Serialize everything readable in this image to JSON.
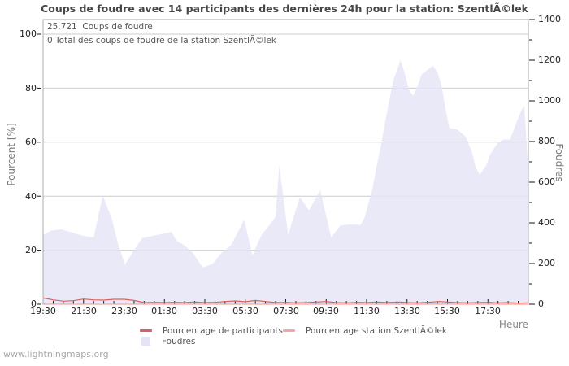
{
  "title": "Coups de foudre avec 14 participants des dernières 24h pour la station: SzentlÃ©lek",
  "annotations": {
    "total_strikes": "25.721  Coups de foudre",
    "station_total": "0 Total des coups de foudre de la station SzentlÃ©lek"
  },
  "footer": "www.lightningmaps.org",
  "colors": {
    "grid": "#cdcdcd",
    "frame": "#ababab",
    "tick": "#1a1a1a",
    "area": "#e4e4f6",
    "participants_line": "#d9605e",
    "station_line": "#f2a7a5",
    "title_text": "#474747",
    "label_text": "#555555"
  },
  "legend": {
    "participants_label": "Pourcentage de participants",
    "station_label": "Pourcentage station SzentlÃ©lek",
    "foudres_label": "Foudres"
  },
  "chart_data": {
    "type": "area",
    "title": "Coups de foudre avec 14 participants des dernières 24h pour la station: SzentlÃ©lek",
    "grid": "horizontal",
    "legend_position": "bottom",
    "x_axis": {
      "label": "Heure",
      "start_time": "19:30",
      "range_hours": [
        0,
        24
      ],
      "minor_tick_step_hours": 0.5,
      "major_tick_step_hours": 2,
      "ticklabels": [
        "19:30",
        "21:30",
        "23:30",
        "01:30",
        "03:30",
        "05:30",
        "07:30",
        "09:30",
        "11:30",
        "13:30",
        "15:30",
        "17:30"
      ]
    },
    "y_left": {
      "label": "Pourcent  [%]",
      "range": [
        0,
        100
      ],
      "ticks": [
        0,
        20,
        40,
        60,
        80,
        100
      ],
      "ticklabels": [
        "0",
        "20",
        "40",
        "60",
        "80",
        "100"
      ]
    },
    "y_right": {
      "label": "Foudres",
      "range": [
        0,
        1400
      ],
      "ticks": [
        0,
        200,
        400,
        600,
        800,
        1000,
        1200,
        1400
      ],
      "minor_tick_step": 100,
      "ticklabels": [
        "0",
        "200",
        "400",
        "600",
        "800",
        "1000",
        "1200",
        "1400"
      ]
    },
    "series": [
      {
        "name": "Foudres",
        "type": "area",
        "axis": "right",
        "color": "#e4e4f6",
        "fill_opacity": 0.8,
        "points": [
          [
            0.0,
            340
          ],
          [
            0.4,
            362
          ],
          [
            0.9,
            368
          ],
          [
            1.5,
            350
          ],
          [
            2.0,
            336
          ],
          [
            2.5,
            328
          ],
          [
            2.95,
            535
          ],
          [
            3.4,
            420
          ],
          [
            3.7,
            300
          ],
          [
            4.05,
            195
          ],
          [
            4.5,
            265
          ],
          [
            4.9,
            325
          ],
          [
            5.5,
            338
          ],
          [
            6.1,
            350
          ],
          [
            6.35,
            355
          ],
          [
            6.6,
            312
          ],
          [
            7.0,
            288
          ],
          [
            7.4,
            254
          ],
          [
            7.9,
            180
          ],
          [
            8.4,
            200
          ],
          [
            8.8,
            250
          ],
          [
            9.3,
            290
          ],
          [
            9.95,
            415
          ],
          [
            10.35,
            240
          ],
          [
            10.8,
            340
          ],
          [
            11.2,
            390
          ],
          [
            11.5,
            430
          ],
          [
            11.68,
            683
          ],
          [
            12.12,
            341
          ],
          [
            12.7,
            527
          ],
          [
            13.15,
            461
          ],
          [
            13.7,
            561
          ],
          [
            14.25,
            327
          ],
          [
            14.7,
            387
          ],
          [
            15.2,
            392
          ],
          [
            15.7,
            390
          ],
          [
            15.9,
            426
          ],
          [
            16.1,
            500
          ],
          [
            16.3,
            573
          ],
          [
            16.5,
            680
          ],
          [
            16.7,
            773
          ],
          [
            16.9,
            886
          ],
          [
            17.1,
            993
          ],
          [
            17.3,
            1093
          ],
          [
            17.68,
            1200
          ],
          [
            17.9,
            1130
          ],
          [
            18.1,
            1053
          ],
          [
            18.3,
            1025
          ],
          [
            18.5,
            1066
          ],
          [
            18.7,
            1126
          ],
          [
            19.0,
            1152
          ],
          [
            19.28,
            1172
          ],
          [
            19.5,
            1140
          ],
          [
            19.7,
            1080
          ],
          [
            19.9,
            960
          ],
          [
            20.1,
            866
          ],
          [
            20.5,
            858
          ],
          [
            20.9,
            824
          ],
          [
            21.2,
            750
          ],
          [
            21.4,
            672
          ],
          [
            21.6,
            638
          ],
          [
            21.9,
            680
          ],
          [
            22.1,
            733
          ],
          [
            22.3,
            766
          ],
          [
            22.5,
            793
          ],
          [
            22.75,
            810
          ],
          [
            23.1,
            810
          ],
          [
            23.4,
            891
          ],
          [
            23.65,
            953
          ],
          [
            23.8,
            975
          ],
          [
            24.0,
            640
          ]
        ]
      },
      {
        "name": "Pourcentage de participants",
        "type": "line",
        "axis": "left",
        "color": "#d9605e",
        "points": [
          [
            0.0,
            2.3
          ],
          [
            0.5,
            1.6
          ],
          [
            1.0,
            1.1
          ],
          [
            1.5,
            1.3
          ],
          [
            2.0,
            1.9
          ],
          [
            2.5,
            1.6
          ],
          [
            3.0,
            1.5
          ],
          [
            3.5,
            1.8
          ],
          [
            4.0,
            1.8
          ],
          [
            4.5,
            1.4
          ],
          [
            5.0,
            0.6
          ],
          [
            5.5,
            0.7
          ],
          [
            6.0,
            0.6
          ],
          [
            6.5,
            0.7
          ],
          [
            7.0,
            0.6
          ],
          [
            7.5,
            0.8
          ],
          [
            8.0,
            0.6
          ],
          [
            8.5,
            0.7
          ],
          [
            9.0,
            1.0
          ],
          [
            9.5,
            1.2
          ],
          [
            10.0,
            0.9
          ],
          [
            10.5,
            1.4
          ],
          [
            11.0,
            1.0
          ],
          [
            11.5,
            0.6
          ],
          [
            12.0,
            0.7
          ],
          [
            12.5,
            0.5
          ],
          [
            13.0,
            0.6
          ],
          [
            13.5,
            0.8
          ],
          [
            14.0,
            1.0
          ],
          [
            14.5,
            0.6
          ],
          [
            15.0,
            0.5
          ],
          [
            15.5,
            0.7
          ],
          [
            16.0,
            0.6
          ],
          [
            16.5,
            0.8
          ],
          [
            17.0,
            0.6
          ],
          [
            17.6,
            0.8
          ],
          [
            18.0,
            0.6
          ],
          [
            18.5,
            0.5
          ],
          [
            19.0,
            0.7
          ],
          [
            19.6,
            1.0
          ],
          [
            20.0,
            0.8
          ],
          [
            20.5,
            0.6
          ],
          [
            21.0,
            0.5
          ],
          [
            21.5,
            0.6
          ],
          [
            22.0,
            0.7
          ],
          [
            22.5,
            0.5
          ],
          [
            23.0,
            0.6
          ],
          [
            23.5,
            0.4
          ],
          [
            24.0,
            0.5
          ]
        ]
      },
      {
        "name": "Pourcentage station SzentlÃ©lek",
        "type": "line",
        "axis": "left",
        "color": "#f2a7a5",
        "points": [
          [
            0,
            0
          ],
          [
            24,
            0
          ]
        ]
      }
    ]
  }
}
